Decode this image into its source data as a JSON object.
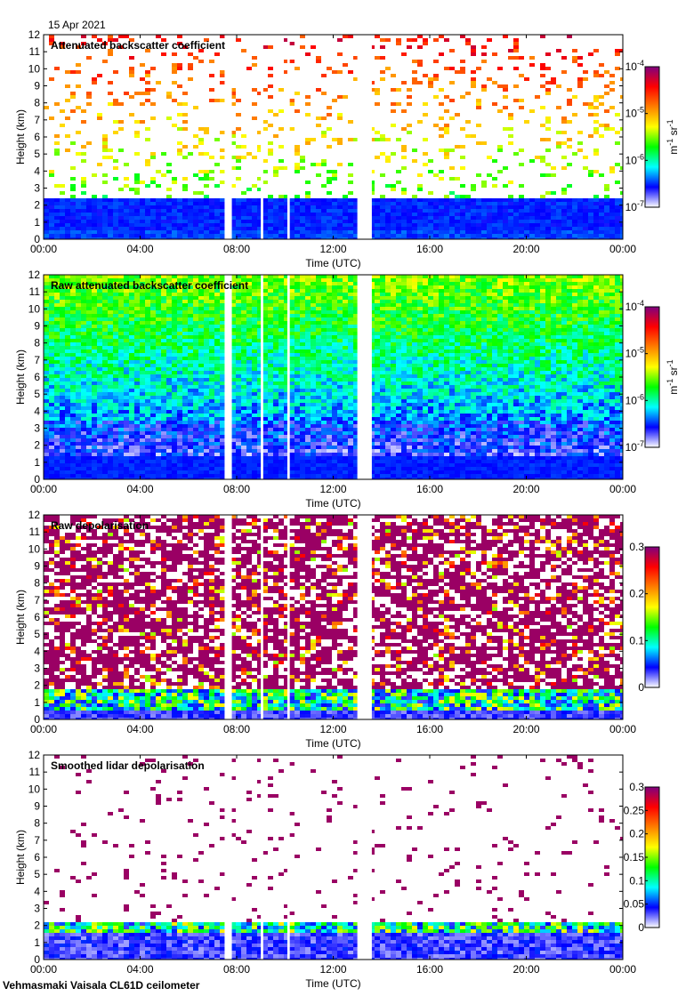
{
  "date_label": "15 Apr 2021",
  "footer": "Vehmasmaki Vaisala CL61D ceilometer",
  "colorscale": [
    "#ffffff",
    "#0000ff",
    "#00ffff",
    "#00ff00",
    "#ffff00",
    "#ff7f00",
    "#ff0000",
    "#7f007f"
  ],
  "chart_data": [
    {
      "type": "heatmap",
      "title": "Attenuated backscatter coefficient",
      "xlabel": "Time (UTC)",
      "ylabel": "Height (km)",
      "xticks": [
        "00:00",
        "04:00",
        "08:00",
        "12:00",
        "16:00",
        "20:00",
        "00:00"
      ],
      "yticks": [
        "0",
        "1",
        "2",
        "3",
        "4",
        "5",
        "6",
        "7",
        "8",
        "9",
        "10",
        "11",
        "12"
      ],
      "xlim": [
        0,
        24
      ],
      "ylim": [
        0,
        12
      ],
      "data_gaps_utc": [
        [
          7.5,
          7.8
        ],
        [
          9.0,
          9.1
        ],
        [
          10.1,
          10.2
        ],
        [
          13.0,
          13.6
        ]
      ],
      "boundary_layer_top_km": 2.3,
      "colorbar": {
        "scale": "log",
        "range": [
          1e-07,
          0.0001
        ],
        "unit": "m-1 sr-1",
        "ticks": [
          {
            "base": "10",
            "exp": "-7"
          },
          {
            "base": "10",
            "exp": "-6"
          },
          {
            "base": "10",
            "exp": "-5"
          },
          {
            "base": "10",
            "exp": "-4"
          }
        ]
      }
    },
    {
      "type": "heatmap",
      "title": "Raw attenuated backscatter coefficient",
      "xlabel": "Time (UTC)",
      "ylabel": "Height (km)",
      "xticks": [
        "00:00",
        "04:00",
        "08:00",
        "12:00",
        "16:00",
        "20:00",
        "00:00"
      ],
      "yticks": [
        "0",
        "1",
        "2",
        "3",
        "4",
        "5",
        "6",
        "7",
        "8",
        "9",
        "10",
        "11",
        "12"
      ],
      "xlim": [
        0,
        24
      ],
      "ylim": [
        0,
        12
      ],
      "data_gaps_utc": [
        [
          7.5,
          7.8
        ],
        [
          9.0,
          9.1
        ],
        [
          10.1,
          10.2
        ],
        [
          13.0,
          13.6
        ]
      ],
      "boundary_layer_top_km": 1.3,
      "colorbar": {
        "scale": "log",
        "range": [
          1e-07,
          0.0001
        ],
        "unit": "m-1 sr-1",
        "ticks": [
          {
            "base": "10",
            "exp": "-7"
          },
          {
            "base": "10",
            "exp": "-6"
          },
          {
            "base": "10",
            "exp": "-5"
          },
          {
            "base": "10",
            "exp": "-4"
          }
        ]
      }
    },
    {
      "type": "heatmap",
      "title": "Raw depolarisation",
      "xlabel": "Time (UTC)",
      "ylabel": "Height (km)",
      "xticks": [
        "00:00",
        "04:00",
        "08:00",
        "12:00",
        "16:00",
        "20:00",
        "00:00"
      ],
      "yticks": [
        "0",
        "1",
        "2",
        "3",
        "4",
        "5",
        "6",
        "7",
        "8",
        "9",
        "10",
        "11",
        "12"
      ],
      "xlim": [
        0,
        24
      ],
      "ylim": [
        0,
        12
      ],
      "data_gaps_utc": [
        [
          7.5,
          7.8
        ],
        [
          9.0,
          9.1
        ],
        [
          10.1,
          10.2
        ],
        [
          13.0,
          13.6
        ]
      ],
      "boundary_layer_top_km": 1.8,
      "colorbar": {
        "scale": "linear",
        "range": [
          0,
          0.3
        ],
        "unit": "",
        "ticks": [
          "0",
          "0.1",
          "0.2",
          "0.3"
        ]
      }
    },
    {
      "type": "heatmap",
      "title": "Smoothed lidar depolarisation",
      "xlabel": "Time (UTC)",
      "ylabel": "Height (km)",
      "xticks": [
        "00:00",
        "04:00",
        "08:00",
        "12:00",
        "16:00",
        "20:00",
        "00:00"
      ],
      "yticks": [
        "0",
        "1",
        "2",
        "3",
        "4",
        "5",
        "6",
        "7",
        "8",
        "9",
        "10",
        "11",
        "12"
      ],
      "xlim": [
        0,
        24
      ],
      "ylim": [
        0,
        12
      ],
      "data_gaps_utc": [
        [
          7.5,
          7.8
        ],
        [
          9.0,
          9.1
        ],
        [
          10.1,
          10.2
        ],
        [
          13.0,
          13.6
        ]
      ],
      "boundary_layer_top_km": 2.2,
      "colorbar": {
        "scale": "linear",
        "range": [
          0,
          0.3
        ],
        "unit": "",
        "ticks": [
          "0",
          "0.05",
          "0.1",
          "0.15",
          "0.2",
          "0.25",
          "0.3"
        ]
      }
    }
  ]
}
